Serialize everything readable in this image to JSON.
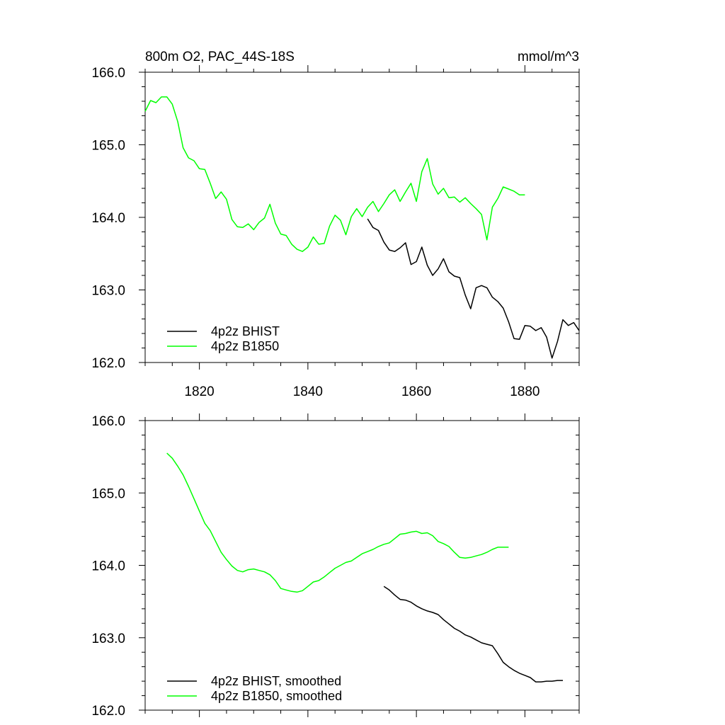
{
  "header": {
    "title": "800m O2, PAC_44S-18S",
    "units": "mmol/m^3"
  },
  "colors": {
    "bhist": "#000000",
    "b1850": "#00ff00"
  },
  "chart_data": [
    {
      "type": "line",
      "title": "800m O2, PAC_44S-18S",
      "units": "mmol/m^3",
      "xlim": [
        1810,
        1890
      ],
      "ylim": [
        162.0,
        166.0
      ],
      "xticks": [
        1820,
        1840,
        1860,
        1880
      ],
      "yticks": [
        162.0,
        163.0,
        164.0,
        165.0,
        166.0
      ],
      "grid": false,
      "legend": "bottom-left",
      "series": [
        {
          "name": "4p2z BHIST",
          "color": "#000000",
          "x": [
            1851,
            1852,
            1853,
            1854,
            1855,
            1856,
            1857,
            1858,
            1859,
            1860,
            1861,
            1862,
            1863,
            1864,
            1865,
            1866,
            1867,
            1868,
            1869,
            1870,
            1871,
            1872,
            1873,
            1874,
            1875,
            1876,
            1877,
            1878,
            1879,
            1880,
            1881,
            1882,
            1883,
            1884,
            1885,
            1886,
            1887,
            1888,
            1889,
            1890
          ],
          "values": [
            163.98,
            163.86,
            163.82,
            163.66,
            163.55,
            163.53,
            163.58,
            163.65,
            163.35,
            163.39,
            163.59,
            163.34,
            163.2,
            163.29,
            163.43,
            163.25,
            163.19,
            163.17,
            162.93,
            162.74,
            163.03,
            163.06,
            163.03,
            162.9,
            162.84,
            162.75,
            162.56,
            162.33,
            162.32,
            162.51,
            162.5,
            162.44,
            162.48,
            162.35,
            162.06,
            162.29,
            162.59,
            162.51,
            162.55,
            162.44
          ]
        },
        {
          "name": "4p2z B1850",
          "color": "#00ff00",
          "x": [
            1810,
            1811,
            1812,
            1813,
            1814,
            1815,
            1816,
            1817,
            1818,
            1819,
            1820,
            1821,
            1822,
            1823,
            1824,
            1825,
            1826,
            1827,
            1828,
            1829,
            1830,
            1831,
            1832,
            1833,
            1834,
            1835,
            1836,
            1837,
            1838,
            1839,
            1840,
            1841,
            1842,
            1843,
            1844,
            1845,
            1846,
            1847,
            1848,
            1849,
            1850,
            1851,
            1852,
            1853,
            1854,
            1855,
            1856,
            1857,
            1858,
            1859,
            1860,
            1861,
            1862,
            1863,
            1864,
            1865,
            1866,
            1867,
            1868,
            1869,
            1870,
            1871,
            1872,
            1873,
            1874,
            1875,
            1876,
            1877,
            1878,
            1879,
            1880
          ],
          "values": [
            165.46,
            165.61,
            165.58,
            165.66,
            165.66,
            165.56,
            165.32,
            164.96,
            164.82,
            164.78,
            164.67,
            164.66,
            164.47,
            164.26,
            164.35,
            164.25,
            163.97,
            163.87,
            163.86,
            163.91,
            163.83,
            163.93,
            163.99,
            164.18,
            163.92,
            163.77,
            163.75,
            163.63,
            163.56,
            163.53,
            163.59,
            163.73,
            163.63,
            163.64,
            163.88,
            164.03,
            163.96,
            163.76,
            164.01,
            164.12,
            164.01,
            164.14,
            164.22,
            164.08,
            164.19,
            164.31,
            164.38,
            164.22,
            164.35,
            164.47,
            164.22,
            164.63,
            164.81,
            164.46,
            164.32,
            164.4,
            164.27,
            164.28,
            164.21,
            164.27,
            164.19,
            164.12,
            164.04,
            163.69,
            164.14,
            164.26,
            164.42,
            164.39,
            164.36,
            164.31,
            164.31
          ]
        }
      ]
    },
    {
      "type": "line",
      "xlim": [
        1810,
        1890
      ],
      "ylim": [
        162.0,
        166.0
      ],
      "xticks": [
        1820,
        1840,
        1860,
        1880
      ],
      "yticks": [
        162.0,
        163.0,
        164.0,
        165.0,
        166.0
      ],
      "grid": false,
      "legend": "bottom-left",
      "series": [
        {
          "name": "4p2z BHIST, smoothed",
          "color": "#000000",
          "x": [
            1854,
            1855,
            1856,
            1857,
            1858,
            1859,
            1860,
            1861,
            1862,
            1863,
            1864,
            1865,
            1866,
            1867,
            1868,
            1869,
            1870,
            1871,
            1872,
            1873,
            1874,
            1875,
            1876,
            1877,
            1878,
            1879,
            1880,
            1881,
            1882,
            1883,
            1884,
            1885,
            1886,
            1887
          ],
          "values": [
            163.71,
            163.66,
            163.59,
            163.53,
            163.52,
            163.49,
            163.44,
            163.4,
            163.37,
            163.35,
            163.32,
            163.25,
            163.19,
            163.13,
            163.09,
            163.04,
            163.01,
            162.97,
            162.93,
            162.91,
            162.89,
            162.78,
            162.66,
            162.6,
            162.55,
            162.51,
            162.48,
            162.45,
            162.39,
            162.39,
            162.4,
            162.4,
            162.41,
            162.41
          ]
        },
        {
          "name": "4p2z B1850, smoothed",
          "color": "#00ff00",
          "x": [
            1814,
            1815,
            1816,
            1817,
            1818,
            1819,
            1820,
            1821,
            1822,
            1823,
            1824,
            1825,
            1826,
            1827,
            1828,
            1829,
            1830,
            1831,
            1832,
            1833,
            1834,
            1835,
            1836,
            1837,
            1838,
            1839,
            1840,
            1841,
            1842,
            1843,
            1844,
            1845,
            1846,
            1847,
            1848,
            1849,
            1850,
            1851,
            1852,
            1853,
            1854,
            1855,
            1856,
            1857,
            1858,
            1859,
            1860,
            1861,
            1862,
            1863,
            1864,
            1865,
            1866,
            1867,
            1868,
            1869,
            1870,
            1871,
            1872,
            1873,
            1874,
            1875,
            1876,
            1877
          ],
          "values": [
            165.55,
            165.48,
            165.37,
            165.25,
            165.09,
            164.92,
            164.75,
            164.58,
            164.48,
            164.33,
            164.18,
            164.08,
            163.99,
            163.93,
            163.91,
            163.94,
            163.95,
            163.93,
            163.91,
            163.87,
            163.79,
            163.68,
            163.66,
            163.64,
            163.63,
            163.65,
            163.71,
            163.77,
            163.79,
            163.84,
            163.9,
            163.96,
            164.0,
            164.04,
            164.06,
            164.11,
            164.16,
            164.19,
            164.22,
            164.26,
            164.29,
            164.31,
            164.37,
            164.43,
            164.44,
            164.46,
            164.47,
            164.44,
            164.45,
            164.41,
            164.33,
            164.3,
            164.26,
            164.18,
            164.11,
            164.1,
            164.11,
            164.13,
            164.15,
            164.18,
            164.22,
            164.25,
            164.25,
            164.25
          ]
        }
      ]
    }
  ]
}
